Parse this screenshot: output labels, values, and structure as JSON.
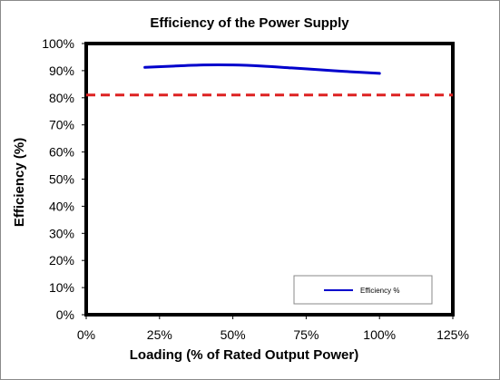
{
  "chart_data": {
    "type": "line",
    "title": "Efficiency of the Power Supply",
    "xlabel": "Loading (% of Rated Output Power)",
    "ylabel": "Efficiency (%)",
    "xlim": [
      0,
      125
    ],
    "ylim": [
      0,
      100
    ],
    "x_ticks": [
      "0%",
      "25%",
      "50%",
      "75%",
      "100%",
      "125%"
    ],
    "y_ticks": [
      "0%",
      "10%",
      "20%",
      "30%",
      "40%",
      "50%",
      "60%",
      "70%",
      "80%",
      "90%",
      "100%"
    ],
    "grid": false,
    "legend_position": "bottom-right",
    "series": [
      {
        "name": "Efficiency %",
        "color": "#0000cc",
        "line_style": "solid",
        "x": [
          20,
          30,
          40,
          50,
          60,
          70,
          80,
          90,
          100
        ],
        "y": [
          91.2,
          91.7,
          92.1,
          92.1,
          91.7,
          91.0,
          90.3,
          89.6,
          89.0
        ]
      }
    ],
    "reference_line": {
      "y": 81,
      "color": "#dd2222",
      "line_style": "dashed"
    }
  }
}
